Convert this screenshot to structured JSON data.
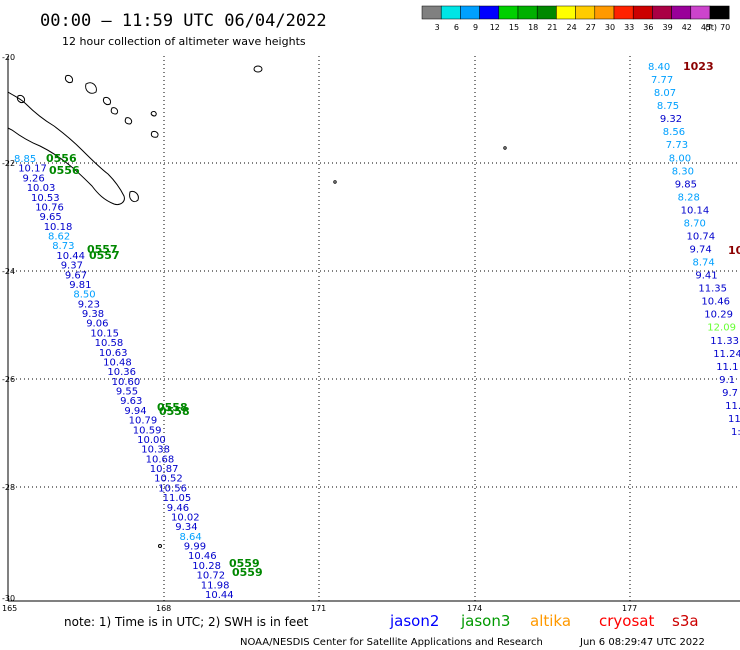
{
  "header": {
    "title": "00:00 – 11:59 UTC 06/04/2022",
    "subtitle": "12 hour collection of altimeter wave heights"
  },
  "legend": {
    "colors": [
      "#808080",
      "#00e5e5",
      "#00a0ff",
      "#0000ff",
      "#00d000",
      "#00b000",
      "#008800",
      "#ffff00",
      "#ffcc00",
      "#ff9900",
      "#ff2200",
      "#cc0000",
      "#aa0044",
      "#990099",
      "#cc44cc",
      "#000000"
    ],
    "labels": [
      "3",
      "6",
      "9",
      "12",
      "15",
      "18",
      "21",
      "24",
      "27",
      "30",
      "33",
      "36",
      "39",
      "42",
      "45",
      "70"
    ],
    "unit": "(ft)"
  },
  "axes": {
    "y_labels": [
      "-20",
      "-22",
      "-24",
      "-26",
      "-28",
      "-30"
    ],
    "x_labels": [
      "165",
      "168",
      "171",
      "174",
      "177"
    ]
  },
  "map_data": {
    "pressure_label": {
      "text": "1023",
      "color": "#8b0000"
    },
    "pressure_label_cut": {
      "text": "10",
      "color": "#8b0000"
    },
    "time_labels": [
      {
        "text": "0556",
        "color": "#008800"
      },
      {
        "text": "0557",
        "color": "#008800"
      },
      {
        "text": "0558",
        "color": "#008800"
      },
      {
        "text": "0559",
        "color": "#008800"
      }
    ],
    "left_track": [
      {
        "v": "8.85",
        "c": "#00a0ff"
      },
      {
        "v": "10.17",
        "c": "#0000cc"
      },
      {
        "v": "9.26",
        "c": "#0000cc"
      },
      {
        "v": "10.03",
        "c": "#0000cc"
      },
      {
        "v": "10.53",
        "c": "#0000cc"
      },
      {
        "v": "10.76",
        "c": "#0000cc"
      },
      {
        "v": "9.65",
        "c": "#0000cc"
      },
      {
        "v": "10.18",
        "c": "#0000cc"
      },
      {
        "v": "8.62",
        "c": "#00a0ff"
      },
      {
        "v": "8.73",
        "c": "#00a0ff"
      },
      {
        "v": "10.44",
        "c": "#0000cc"
      },
      {
        "v": "9.37",
        "c": "#0000cc"
      },
      {
        "v": "9.67",
        "c": "#0000cc"
      },
      {
        "v": "9.81",
        "c": "#0000cc"
      },
      {
        "v": "8.50",
        "c": "#00a0ff"
      },
      {
        "v": "9.23",
        "c": "#0000cc"
      },
      {
        "v": "9.38",
        "c": "#0000cc"
      },
      {
        "v": "9.06",
        "c": "#0000cc"
      },
      {
        "v": "10.15",
        "c": "#0000cc"
      },
      {
        "v": "10.58",
        "c": "#0000cc"
      },
      {
        "v": "10.63",
        "c": "#0000cc"
      },
      {
        "v": "10.48",
        "c": "#0000cc"
      },
      {
        "v": "10.36",
        "c": "#0000cc"
      },
      {
        "v": "10.60",
        "c": "#0000cc"
      },
      {
        "v": "9.55",
        "c": "#0000cc"
      },
      {
        "v": "9.63",
        "c": "#0000cc"
      },
      {
        "v": "9.94",
        "c": "#0000cc"
      },
      {
        "v": "10.79",
        "c": "#0000cc"
      },
      {
        "v": "10.59",
        "c": "#0000cc"
      },
      {
        "v": "10.00",
        "c": "#0000cc"
      },
      {
        "v": "10.38",
        "c": "#0000cc"
      },
      {
        "v": "10.68",
        "c": "#0000cc"
      },
      {
        "v": "10.87",
        "c": "#0000cc"
      },
      {
        "v": "10.52",
        "c": "#0000cc"
      },
      {
        "v": "10.56",
        "c": "#0000cc"
      },
      {
        "v": "11.05",
        "c": "#0000cc"
      },
      {
        "v": "9.46",
        "c": "#0000cc"
      },
      {
        "v": "10.02",
        "c": "#0000cc"
      },
      {
        "v": "9.34",
        "c": "#0000cc"
      },
      {
        "v": "8.64",
        "c": "#00a0ff"
      },
      {
        "v": "9.99",
        "c": "#0000cc"
      },
      {
        "v": "10.46",
        "c": "#0000cc"
      },
      {
        "v": "10.28",
        "c": "#0000cc"
      },
      {
        "v": "10.72",
        "c": "#0000cc"
      },
      {
        "v": "11.98",
        "c": "#0000cc"
      },
      {
        "v": "10.44",
        "c": "#0000cc"
      }
    ],
    "right_track": [
      {
        "v": "8.40",
        "c": "#00a0ff"
      },
      {
        "v": "7.77",
        "c": "#00a0ff"
      },
      {
        "v": "8.07",
        "c": "#00a0ff"
      },
      {
        "v": "8.75",
        "c": "#00a0ff"
      },
      {
        "v": "9.32",
        "c": "#0000cc"
      },
      {
        "v": "8.56",
        "c": "#00a0ff"
      },
      {
        "v": "7.73",
        "c": "#00a0ff"
      },
      {
        "v": "8.00",
        "c": "#00a0ff"
      },
      {
        "v": "8.30",
        "c": "#00a0ff"
      },
      {
        "v": "9.85",
        "c": "#0000cc"
      },
      {
        "v": "8.28",
        "c": "#00a0ff"
      },
      {
        "v": "10.14",
        "c": "#0000cc"
      },
      {
        "v": "8.70",
        "c": "#00a0ff"
      },
      {
        "v": "10.74",
        "c": "#0000cc"
      },
      {
        "v": "9.74",
        "c": "#0000cc"
      },
      {
        "v": "8.74",
        "c": "#00a0ff"
      },
      {
        "v": "9.41",
        "c": "#0000cc"
      },
      {
        "v": "11.35",
        "c": "#0000cc"
      },
      {
        "v": "10.46",
        "c": "#0000cc"
      },
      {
        "v": "10.29",
        "c": "#0000cc"
      },
      {
        "v": "12.09",
        "c": "#66ff33"
      },
      {
        "v": "11.33",
        "c": "#0000cc"
      },
      {
        "v": "11.24",
        "c": "#0000cc"
      },
      {
        "v": "11.1",
        "c": "#0000cc"
      },
      {
        "v": "9.1",
        "c": "#0000cc"
      },
      {
        "v": "9.7",
        "c": "#0000cc"
      },
      {
        "v": "11.",
        "c": "#0000cc"
      },
      {
        "v": "11",
        "c": "#0000cc"
      },
      {
        "v": "1:",
        "c": "#0000cc"
      }
    ]
  },
  "footer": {
    "note": "note: 1) Time is in UTC; 2) SWH is in feet",
    "satellites": [
      {
        "name": "jason2",
        "color": "#0000ff"
      },
      {
        "name": "jason3",
        "color": "#009900"
      },
      {
        "name": "altika",
        "color": "#ff9900"
      },
      {
        "name": "cryosat",
        "color": "#ff0000"
      },
      {
        "name": "s3a",
        "color": "#cc0000"
      }
    ],
    "credit": "NOAA/NESDIS Center for Satellite Applications and Research",
    "timestamp": "Jun  6 08:29:47 UTC 2022"
  }
}
